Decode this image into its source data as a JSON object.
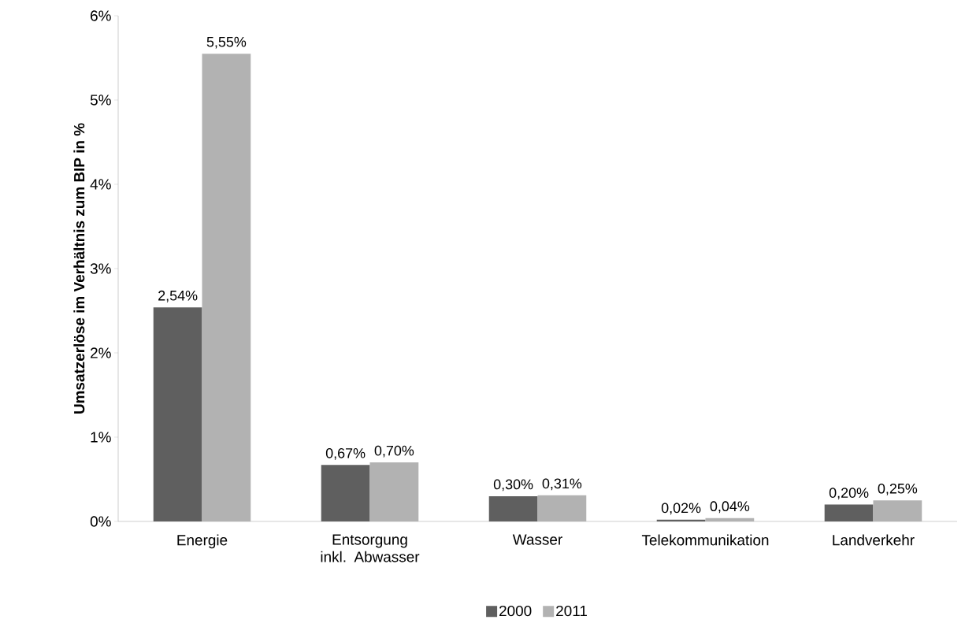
{
  "chart_data": {
    "type": "bar",
    "ylabel": "Umsatzerlöse im Verhältnis zum BIP in %",
    "categories": [
      "Energie",
      "Entsorgung inkl. Abwasser",
      "Wasser",
      "Telekommunikation",
      "Landverkehr"
    ],
    "series": [
      {
        "name": "2000",
        "color": "#5f5f5f",
        "values": [
          2.54,
          0.67,
          0.3,
          0.02,
          0.2
        ],
        "value_labels": [
          "2,54%",
          "0,67%",
          "0,30%",
          "0,02%",
          "0,20%"
        ]
      },
      {
        "name": "2011",
        "color": "#b2b2b2",
        "values": [
          5.55,
          0.7,
          0.31,
          0.04,
          0.25
        ],
        "value_labels": [
          "5,55%",
          "0,70%",
          "0,31%",
          "0,04%",
          "0,25%"
        ]
      }
    ],
    "ylim": [
      0,
      6
    ],
    "yticks": [
      {
        "value": 0,
        "label": "0%"
      },
      {
        "value": 1,
        "label": "1%"
      },
      {
        "value": 2,
        "label": "2%"
      },
      {
        "value": 3,
        "label": "3%"
      },
      {
        "value": 4,
        "label": "4%"
      },
      {
        "value": 5,
        "label": "5%"
      },
      {
        "value": 6,
        "label": "6%"
      }
    ],
    "grid": false,
    "legend": "bottom"
  }
}
